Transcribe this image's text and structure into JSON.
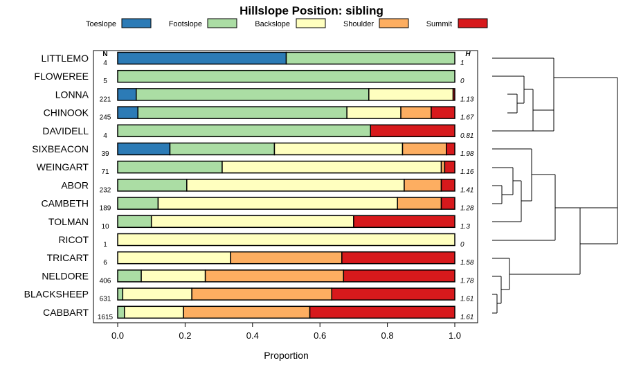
{
  "chart_data": {
    "type": "bar",
    "title": "Hillslope Position: sibling",
    "xlabel": "Proportion",
    "ylabel": "",
    "xlim": [
      0,
      1
    ],
    "x_ticks": [
      "0.0",
      "0.2",
      "0.4",
      "0.6",
      "0.8",
      "1.0"
    ],
    "stacked": true,
    "legend_position": "top",
    "n_header": "N",
    "h_header": "H",
    "series": [
      {
        "name": "Toeslope",
        "color": "#2C7BB6"
      },
      {
        "name": "Footslope",
        "color": "#ABDDA4"
      },
      {
        "name": "Backslope",
        "color": "#FFFFBF"
      },
      {
        "name": "Shoulder",
        "color": "#FDAE61"
      },
      {
        "name": "Summit",
        "color": "#D7191C"
      }
    ],
    "categories": [
      "LITTLEMO",
      "FLOWEREE",
      "LONNA",
      "CHINOOK",
      "DAVIDELL",
      "SIXBEACON",
      "WEINGART",
      "ABOR",
      "CAMBETH",
      "TOLMAN",
      "RICOT",
      "TRICART",
      "NELDORE",
      "BLACKSHEEP",
      "CABBART"
    ],
    "n": [
      "4",
      "5",
      "221",
      "245",
      "4",
      "39",
      "71",
      "232",
      "189",
      "10",
      "1",
      "6",
      "406",
      "631",
      "1615"
    ],
    "h": [
      "1",
      "0",
      "1.13",
      "1.67",
      "0.81",
      "1.98",
      "1.16",
      "1.41",
      "1.28",
      "1.3",
      "0",
      "1.58",
      "1.78",
      "1.61",
      "1.61"
    ],
    "proportions": [
      [
        0.5,
        0.5,
        0.0,
        0.0,
        0.0
      ],
      [
        0.0,
        1.0,
        0.0,
        0.0,
        0.0
      ],
      [
        0.055,
        0.69,
        0.25,
        0.0,
        0.005
      ],
      [
        0.06,
        0.62,
        0.16,
        0.09,
        0.07
      ],
      [
        0.0,
        0.75,
        0.0,
        0.0,
        0.25
      ],
      [
        0.155,
        0.31,
        0.38,
        0.13,
        0.025
      ],
      [
        0.0,
        0.31,
        0.65,
        0.01,
        0.03
      ],
      [
        0.0,
        0.205,
        0.645,
        0.11,
        0.04
      ],
      [
        0.0,
        0.12,
        0.71,
        0.13,
        0.04
      ],
      [
        0.0,
        0.1,
        0.6,
        0.0,
        0.3
      ],
      [
        0.0,
        0.0,
        1.0,
        0.0,
        0.0
      ],
      [
        0.0,
        0.0,
        0.335,
        0.33,
        0.335
      ],
      [
        0.0,
        0.07,
        0.19,
        0.41,
        0.33
      ],
      [
        0.0,
        0.015,
        0.205,
        0.415,
        0.365
      ],
      [
        0.0,
        0.02,
        0.175,
        0.375,
        0.43
      ]
    ]
  }
}
